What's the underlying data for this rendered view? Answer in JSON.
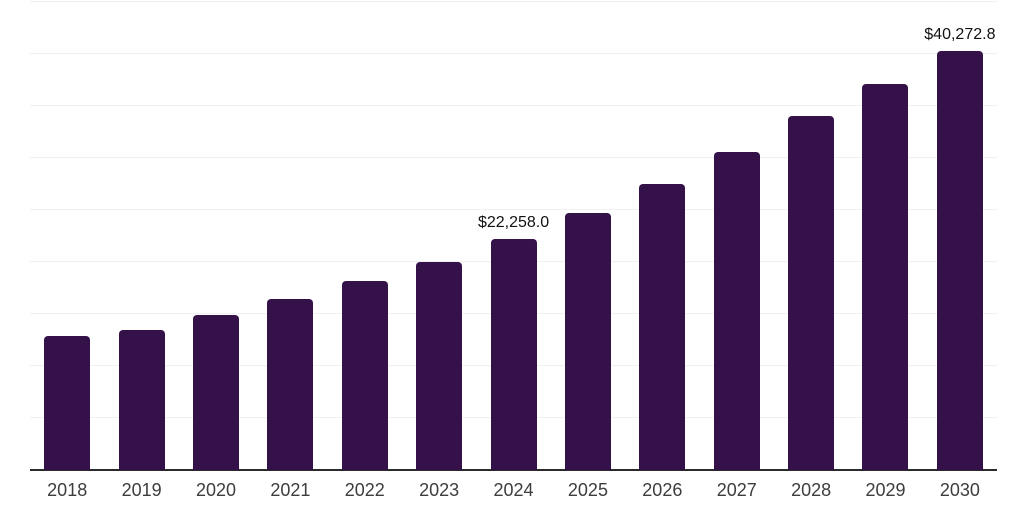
{
  "chart_data": {
    "type": "bar",
    "title": "",
    "xlabel": "",
    "ylabel": "",
    "categories": [
      "2018",
      "2019",
      "2020",
      "2021",
      "2022",
      "2023",
      "2024",
      "2025",
      "2026",
      "2027",
      "2028",
      "2029",
      "2030"
    ],
    "values": [
      12900,
      13460,
      14900,
      16400,
      18150,
      20000,
      22258.0,
      24700,
      27500,
      30580,
      34000,
      37100,
      40272.8
    ],
    "value_labels": [
      "",
      "",
      "",
      "",
      "",
      "",
      "$22,258.0",
      "",
      "",
      "",
      "",
      "",
      "$40,272.8"
    ],
    "ylim": [
      0,
      45000
    ],
    "gridline_step": 5000,
    "grid": "horizontal",
    "legend_position": "none",
    "y_axis_tick_labels_visible": false,
    "colors": {
      "bar": "#341249",
      "gridline": "#f0f0f1",
      "axis_line": "#2b2b2b",
      "tick_label": "#3d3d3d",
      "data_label": "#121212",
      "background": "#ffffff"
    }
  }
}
